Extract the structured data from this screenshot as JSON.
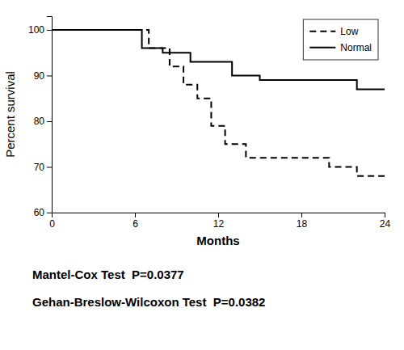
{
  "chart_data": {
    "type": "line",
    "xlabel": "Months",
    "ylabel": "Percent survival",
    "series": [
      {
        "name": "Low",
        "color": "#000000",
        "line_style": "dashed",
        "x": [
          0,
          7,
          7,
          8.5,
          8.5,
          9.5,
          9.5,
          10.5,
          10.5,
          11.5,
          11.5,
          12.5,
          12.5,
          14,
          14,
          17,
          17,
          20,
          20,
          22,
          22,
          24
        ],
        "values": [
          100,
          100,
          96,
          96,
          92,
          92,
          88,
          88,
          85,
          85,
          79,
          79,
          75,
          75,
          72,
          72,
          72,
          72,
          70,
          70,
          68,
          68
        ]
      },
      {
        "name": "Normal",
        "color": "#000000",
        "line_style": "solid",
        "x": [
          0,
          6.5,
          6.5,
          8,
          8,
          10,
          10,
          13,
          13,
          15,
          15,
          22,
          22,
          24
        ],
        "values": [
          100,
          100,
          96,
          96,
          95,
          95,
          93,
          93,
          90,
          90,
          89,
          89,
          87,
          87
        ]
      }
    ],
    "xlim": [
      0,
      24
    ],
    "ylim": [
      60,
      103
    ],
    "xticks": [
      0,
      6,
      12,
      18,
      24
    ],
    "yticks": [
      60,
      70,
      80,
      90,
      100
    ],
    "grid": false,
    "legend": "upper right",
    "annotations": [
      "Mantel-Cox Test  P=0.0377",
      "Gehan-Breslow-Wilcoxon Test  P=0.0382"
    ]
  }
}
